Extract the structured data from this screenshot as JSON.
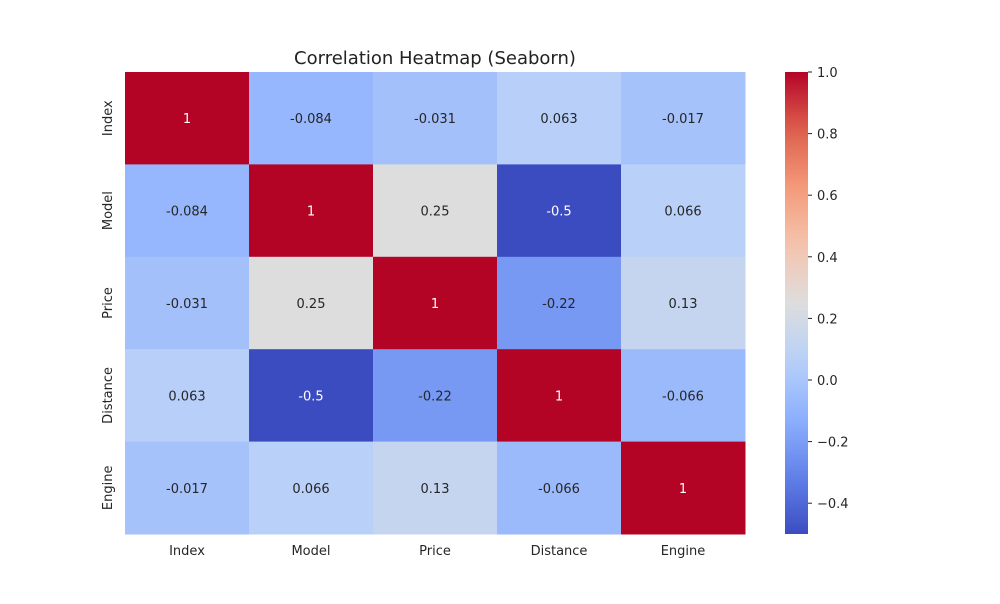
{
  "chart_data": {
    "type": "heatmap",
    "title": "Correlation Heatmap (Seaborn)",
    "xlabel": "",
    "ylabel": "",
    "x_categories": [
      "Index",
      "Model",
      "Price",
      "Distance",
      "Engine"
    ],
    "y_categories": [
      "Index",
      "Model",
      "Price",
      "Distance",
      "Engine"
    ],
    "values": [
      [
        1,
        -0.084,
        -0.031,
        0.063,
        -0.017
      ],
      [
        -0.084,
        1,
        0.25,
        -0.5,
        0.066
      ],
      [
        -0.031,
        0.25,
        1,
        -0.22,
        0.13
      ],
      [
        0.063,
        -0.5,
        -0.22,
        1,
        -0.066
      ],
      [
        -0.017,
        0.066,
        0.13,
        -0.066,
        1
      ]
    ],
    "annotations": [
      [
        "1",
        "-0.084",
        "-0.031",
        "0.063",
        "-0.017"
      ],
      [
        "-0.084",
        "1",
        "0.25",
        "-0.5",
        "0.066"
      ],
      [
        "-0.031",
        "0.25",
        "1",
        "-0.22",
        "0.13"
      ],
      [
        "0.063",
        "-0.5",
        "-0.22",
        "1",
        "-0.066"
      ],
      [
        "-0.017",
        "0.066",
        "0.13",
        "-0.066",
        "1"
      ]
    ],
    "colormap": "coolwarm",
    "vmin": -0.5,
    "vmax": 1.0,
    "colorbar": {
      "ticks": [
        1.0,
        0.8,
        0.6,
        0.4,
        0.2,
        0.0,
        -0.2,
        -0.4
      ],
      "tick_labels": [
        "1.0",
        "0.8",
        "0.6",
        "0.4",
        "0.2",
        "0.0",
        "−0.2",
        "−0.4"
      ],
      "position": "right"
    },
    "grid": false
  }
}
